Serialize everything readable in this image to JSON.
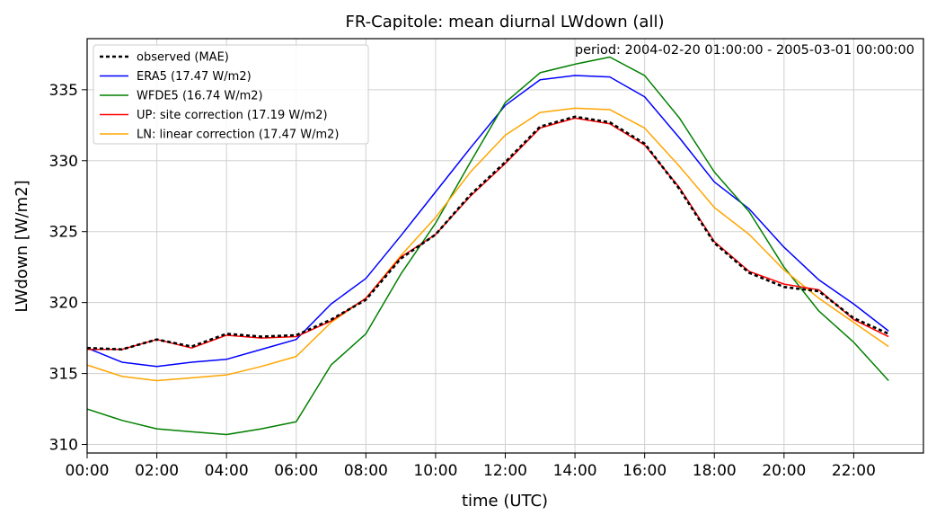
{
  "chart_data": {
    "type": "line",
    "title": "FR-Capitole: mean diurnal LWdown (all)",
    "annotation": "period: 2004-02-20 01:00:00 - 2005-03-01 00:00:00",
    "xlabel": "time (UTC)",
    "ylabel": "LWdown [W/m2]",
    "x_hours": [
      0,
      1,
      2,
      3,
      4,
      5,
      6,
      7,
      8,
      9,
      10,
      11,
      12,
      13,
      14,
      15,
      16,
      17,
      18,
      19,
      20,
      21,
      22,
      23
    ],
    "xlim": [
      0,
      24
    ],
    "ylim": [
      309.4,
      338.6
    ],
    "xticks": [
      {
        "value": 0,
        "label": "00:00"
      },
      {
        "value": 2,
        "label": "02:00"
      },
      {
        "value": 4,
        "label": "04:00"
      },
      {
        "value": 6,
        "label": "06:00"
      },
      {
        "value": 8,
        "label": "08:00"
      },
      {
        "value": 10,
        "label": "10:00"
      },
      {
        "value": 12,
        "label": "12:00"
      },
      {
        "value": 14,
        "label": "14:00"
      },
      {
        "value": 16,
        "label": "16:00"
      },
      {
        "value": 18,
        "label": "18:00"
      },
      {
        "value": 20,
        "label": "20:00"
      },
      {
        "value": 22,
        "label": "22:00"
      }
    ],
    "yticks": [
      {
        "value": 310,
        "label": "310"
      },
      {
        "value": 315,
        "label": "315"
      },
      {
        "value": 320,
        "label": "320"
      },
      {
        "value": 325,
        "label": "325"
      },
      {
        "value": 330,
        "label": "330"
      },
      {
        "value": 335,
        "label": "335"
      }
    ],
    "grid": true,
    "legend_position": "top-left",
    "series": [
      {
        "name": "observed (MAE)",
        "color": "#000000",
        "dashed": true,
        "values": [
          316.8,
          316.7,
          317.4,
          316.9,
          317.8,
          317.6,
          317.7,
          318.8,
          320.2,
          323.1,
          324.8,
          327.6,
          329.9,
          332.4,
          333.1,
          332.7,
          331.2,
          328.0,
          324.2,
          322.1,
          321.1,
          320.8,
          318.9,
          317.8
        ]
      },
      {
        "name": "ERA5 (17.47 W/m2)",
        "color": "#0000ff",
        "dashed": false,
        "values": [
          316.8,
          315.8,
          315.5,
          315.8,
          316.0,
          316.7,
          317.4,
          319.9,
          321.7,
          324.7,
          327.8,
          330.9,
          333.9,
          335.7,
          336.0,
          335.9,
          334.5,
          331.6,
          328.5,
          326.6,
          323.9,
          321.6,
          319.9,
          318.0
        ]
      },
      {
        "name": "WFDE5 (16.74 W/m2)",
        "color": "#008000",
        "dashed": false,
        "values": [
          312.5,
          311.7,
          311.1,
          310.9,
          310.7,
          311.1,
          311.6,
          315.6,
          317.8,
          322.0,
          325.6,
          329.9,
          334.1,
          336.2,
          336.8,
          337.3,
          336.0,
          333.0,
          329.2,
          326.4,
          322.5,
          319.4,
          317.2,
          314.5
        ]
      },
      {
        "name": "UP: site correction (17.19 W/m2)",
        "color": "#ff0000",
        "dashed": false,
        "values": [
          316.7,
          316.7,
          317.4,
          316.8,
          317.7,
          317.5,
          317.6,
          318.7,
          320.3,
          323.2,
          324.8,
          327.5,
          329.8,
          332.3,
          333.0,
          332.6,
          331.1,
          328.1,
          324.3,
          322.2,
          321.3,
          320.9,
          318.8,
          317.6
        ]
      },
      {
        "name": "LN: linear correction (17.47 W/m2)",
        "color": "#ffa500",
        "dashed": false,
        "values": [
          315.6,
          314.8,
          314.5,
          314.7,
          314.9,
          315.5,
          316.2,
          318.6,
          320.3,
          323.3,
          326.0,
          329.2,
          331.8,
          333.4,
          333.7,
          333.6,
          332.3,
          329.6,
          326.7,
          324.8,
          322.3,
          320.3,
          318.6,
          316.9
        ]
      }
    ]
  }
}
